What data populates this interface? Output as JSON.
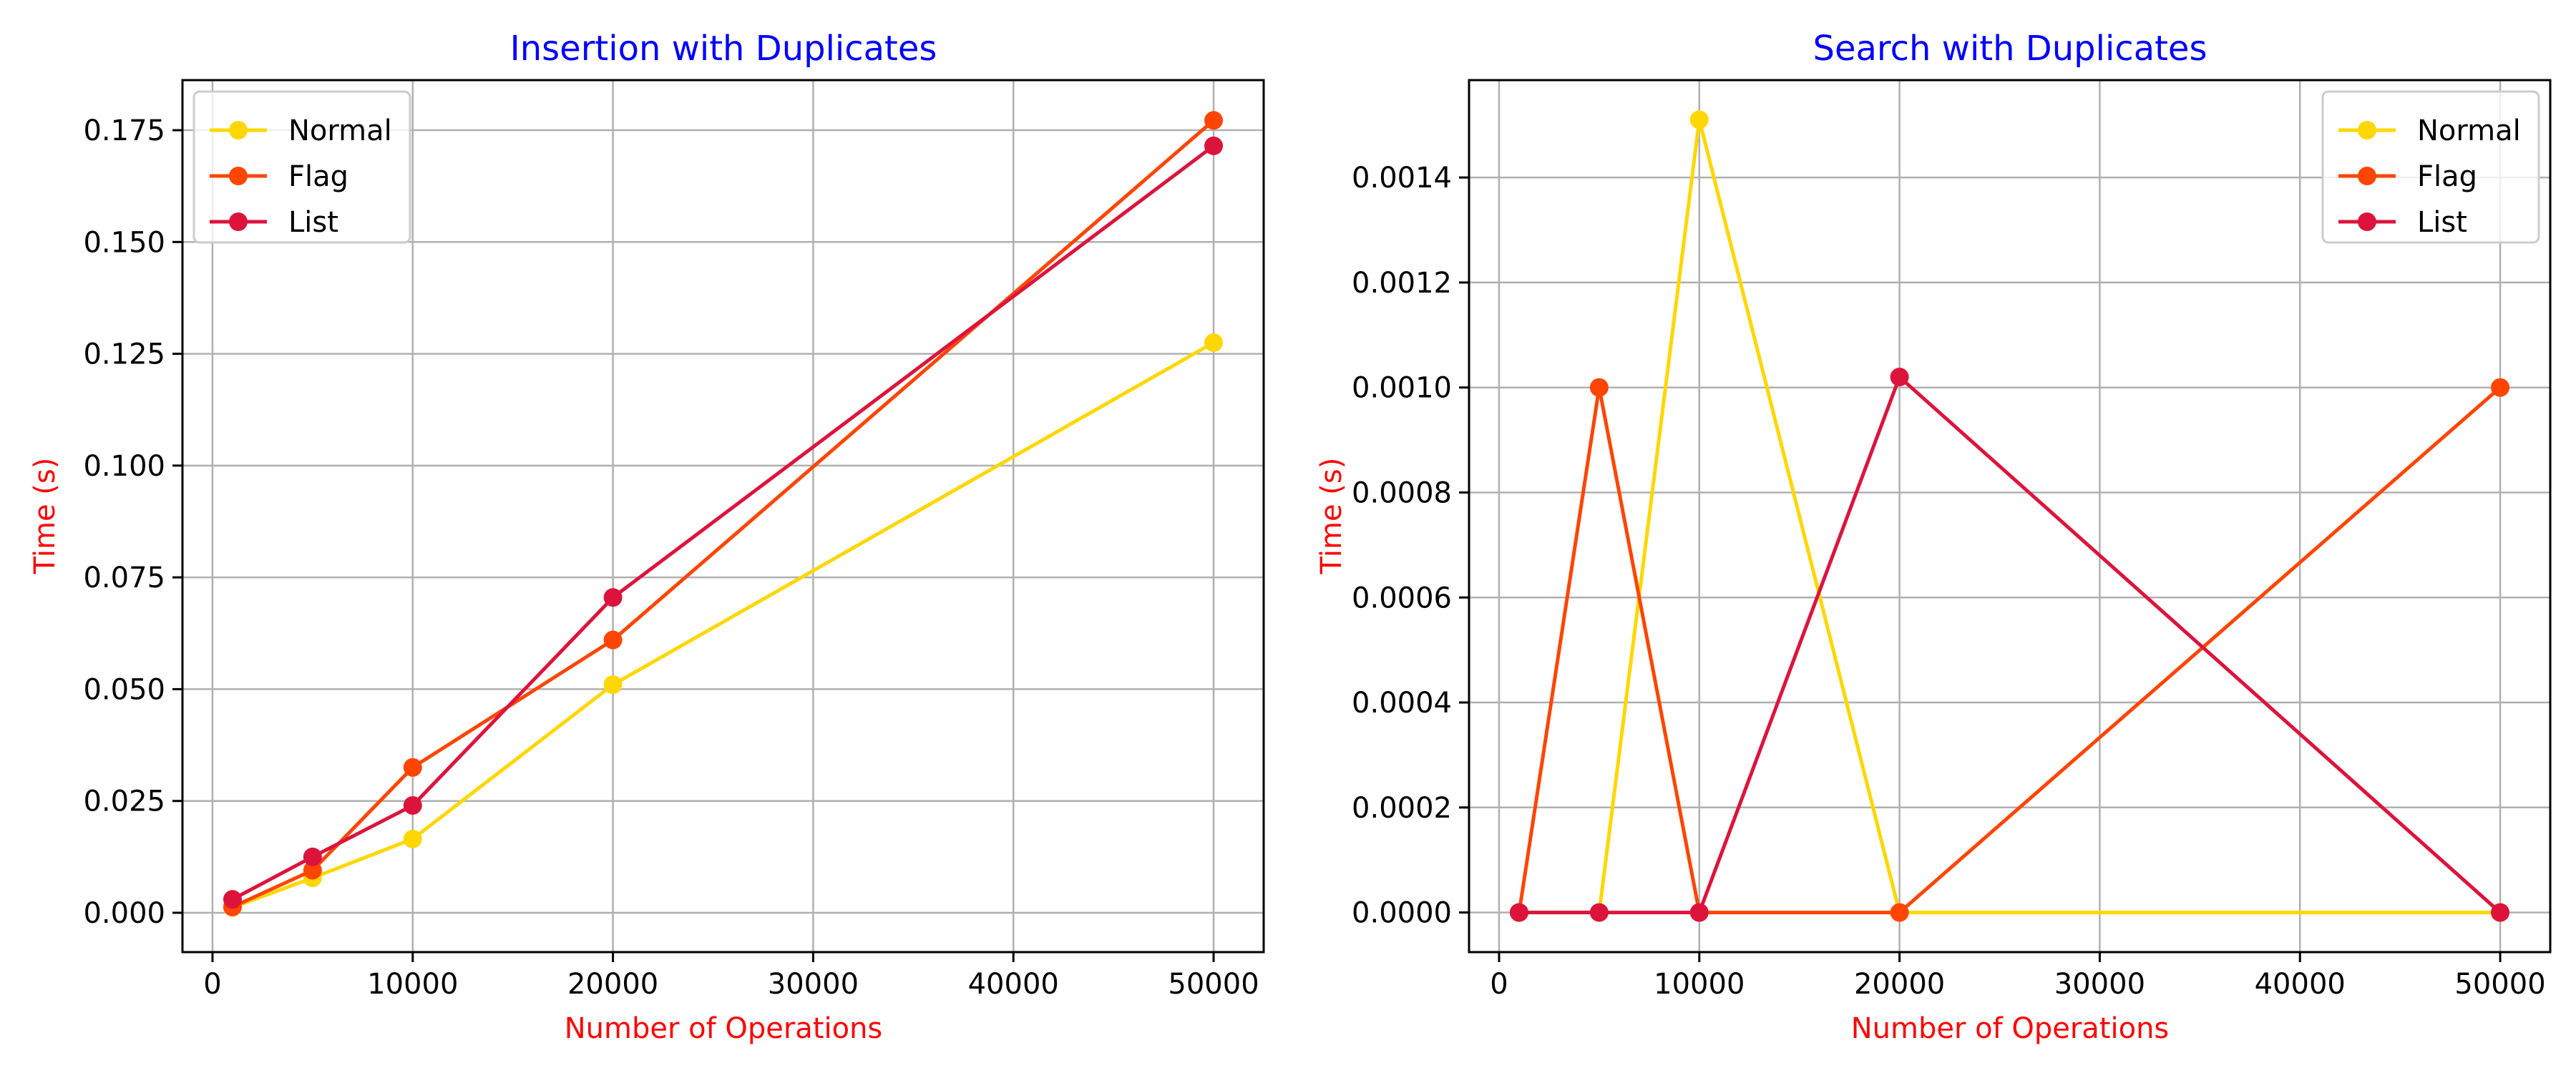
{
  "colors": {
    "title": "#0000ff",
    "axis_label": "#ff0000",
    "Normal": "#ffd700",
    "Flag": "#ff4500",
    "List": "#dc143c"
  },
  "chart_data": [
    {
      "type": "line",
      "title": "Insertion with Duplicates",
      "xlabel": "Number of Operations",
      "ylabel": "Time (s)",
      "x": [
        1000,
        5000,
        10000,
        20000,
        50000
      ],
      "xlim": [
        -1500,
        52500
      ],
      "ylim": [
        -0.0088,
        0.1862
      ],
      "xticks": [
        0,
        10000,
        20000,
        30000,
        40000,
        50000
      ],
      "xtick_labels": [
        "0",
        "10000",
        "20000",
        "30000",
        "40000",
        "50000"
      ],
      "yticks": [
        0,
        0.025,
        0.05,
        0.075,
        0.1,
        0.125,
        0.15,
        0.175
      ],
      "ytick_labels": [
        "0.000",
        "0.025",
        "0.050",
        "0.075",
        "0.100",
        "0.125",
        "0.150",
        "0.175"
      ],
      "grid": true,
      "legend_position": "top-left",
      "series": [
        {
          "name": "Normal",
          "values": [
            0.0012,
            0.0078,
            0.0165,
            0.051,
            0.1275
          ]
        },
        {
          "name": "Flag",
          "values": [
            0.0013,
            0.0095,
            0.0325,
            0.061,
            0.1772
          ]
        },
        {
          "name": "List",
          "values": [
            0.003,
            0.0125,
            0.024,
            0.0705,
            0.1715
          ]
        }
      ]
    },
    {
      "type": "line",
      "title": "Search with Duplicates",
      "xlabel": "Number of Operations",
      "ylabel": "Time (s)",
      "x": [
        1000,
        5000,
        10000,
        20000,
        50000
      ],
      "xlim": [
        -1500,
        52500
      ],
      "ylim": [
        -7.55e-05,
        0.0015855
      ],
      "xticks": [
        0,
        10000,
        20000,
        30000,
        40000,
        50000
      ],
      "xtick_labels": [
        "0",
        "10000",
        "20000",
        "30000",
        "40000",
        "50000"
      ],
      "yticks": [
        0,
        0.0002,
        0.0004,
        0.0006,
        0.0008,
        0.001,
        0.0012,
        0.0014
      ],
      "ytick_labels": [
        "0.0000",
        "0.0002",
        "0.0004",
        "0.0006",
        "0.0008",
        "0.0010",
        "0.0012",
        "0.0014"
      ],
      "grid": true,
      "legend_position": "top-right",
      "series": [
        {
          "name": "Normal",
          "values": [
            0,
            0,
            0.00151,
            0,
            0
          ]
        },
        {
          "name": "Flag",
          "values": [
            0,
            0.001,
            0,
            0,
            0.001
          ]
        },
        {
          "name": "List",
          "values": [
            0,
            0,
            0,
            0.00102,
            0
          ]
        }
      ]
    }
  ]
}
